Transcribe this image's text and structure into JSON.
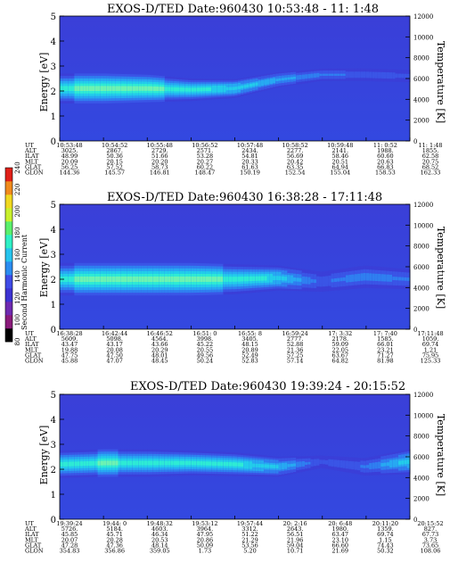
{
  "colorbar": {
    "label": "Second Harmonic Current",
    "ticks": [
      "80",
      "100",
      "120",
      "140",
      "160",
      "180",
      "200",
      "220",
      "240"
    ],
    "colors": [
      "#000000",
      "#8a1a7a",
      "#6e2ab0",
      "#3c32d2",
      "#3f4be6",
      "#2b8cf0",
      "#26c4ee",
      "#2ff0c6",
      "#5bf06c",
      "#c9f02c",
      "#f0d820",
      "#f08a1c",
      "#e02018"
    ]
  },
  "panels": [
    {
      "title": "EXOS-D/TED   Date:960430  10:53:48 - 11: 1:48",
      "ylabel": "Energy [eV]",
      "y2label": "Temperature [K]",
      "yticks": [
        "0",
        "1",
        "2",
        "3",
        "4",
        "5"
      ],
      "y2ticks": [
        "0",
        "2000",
        "4000",
        "6000",
        "8000",
        "10000",
        "12000"
      ],
      "orbit_labels": [
        "UT",
        "ALT",
        "ILAT",
        "MLT",
        "GLAT",
        "GLON"
      ],
      "orbit_columns": [
        [
          "10:53:48",
          "3025.",
          "48.99",
          "20.09",
          "56.25",
          "144.36"
        ],
        [
          "10:54:52",
          "2867.",
          "50.36",
          "20.15",
          "57.52",
          "145.57"
        ],
        [
          "10:55:48",
          "2729.",
          "51.66",
          "20.20",
          "58.73",
          "146.81"
        ],
        [
          "10:56:52",
          "2571.",
          "53.28",
          "20.27",
          "60.22",
          "148.47"
        ],
        [
          "10:57:48",
          "2434.",
          "54.81",
          "20.33",
          "61.63",
          "150.19"
        ],
        [
          "10:58:52",
          "2277.",
          "56.69",
          "20.42",
          "63.35",
          "152.54"
        ],
        [
          "10:59:48",
          "2141.",
          "58.46",
          "20.51",
          "64.94",
          "155.04"
        ],
        [
          "11: 0:52",
          "1988.",
          "60.60",
          "20.63",
          "66.83",
          "158.53"
        ],
        [
          "11: 1:48",
          "1855.",
          "62.58",
          "20.75",
          "68.52",
          "162.33"
        ]
      ]
    },
    {
      "title": "EXOS-D/TED   Date:960430  16:38:28 - 17:11:48",
      "ylabel": "Energy [eV]",
      "y2label": "Temperature [K]",
      "yticks": [
        "0",
        "1",
        "2",
        "3",
        "4",
        "5"
      ],
      "y2ticks": [
        "0",
        "2000",
        "4000",
        "6000",
        "8000",
        "10000",
        "12000"
      ],
      "orbit_labels": [
        "UT",
        "ALT",
        "ILAT",
        "MLT",
        "GLAT",
        "GLON"
      ],
      "orbit_columns": [
        [
          "16:38:28",
          "5609.",
          "43.47",
          "19.88",
          "47.75",
          "45.88"
        ],
        [
          "16:42:44",
          "5098.",
          "43.17",
          "20.08",
          "47.50",
          "47.07"
        ],
        [
          "16:46:52",
          "4564.",
          "43.66",
          "20.29",
          "48.01",
          "48.45"
        ],
        [
          "16:51: 0",
          "3998.",
          "45.22",
          "20.55",
          "49.56",
          "50.24"
        ],
        [
          "16:55: 8",
          "3405.",
          "48.15",
          "20.89",
          "52.49",
          "52.83"
        ],
        [
          "16:59:24",
          "2777.",
          "52.88",
          "21.36",
          "57.25",
          "57.14"
        ],
        [
          "17: 3:32",
          "2178.",
          "59.09",
          "22.05",
          "63.67",
          "64.82"
        ],
        [
          "17: 7:40",
          "1585.",
          "66.01",
          "23.21",
          "71.27",
          "81.98"
        ],
        [
          "17:11:48",
          "1059.",
          "69.74",
          "1.21",
          "75.95",
          "125.33"
        ]
      ]
    },
    {
      "title": "EXOS-D/TED   Date:960430  19:39:24 - 20:15:52",
      "ylabel": "Energy [eV]",
      "y2label": "Temperature [K]",
      "yticks": [
        "0",
        "1",
        "2",
        "3",
        "4",
        "5"
      ],
      "y2ticks": [
        "0",
        "2000",
        "4000",
        "6000",
        "8000",
        "10000",
        "12000"
      ],
      "orbit_labels": [
        "UT",
        "ALT",
        "ILAT",
        "MLT",
        "GLAT",
        "GLON"
      ],
      "orbit_columns": [
        [
          "19:39:24",
          "5726.",
          "45.85",
          "20.07",
          "47.28",
          "354.83"
        ],
        [
          "19:44: 0",
          "5184.",
          "45.71",
          "20.28",
          "47.36",
          "356.86"
        ],
        [
          "19:48:32",
          "4603.",
          "46.34",
          "20.53",
          "48.14",
          "359.05"
        ],
        [
          "19:53:12",
          "3964.",
          "47.95",
          "20.86",
          "50.09",
          "1.73"
        ],
        [
          "19:57:44",
          "3312.",
          "51.22",
          "21.29",
          "53.56",
          "5.20"
        ],
        [
          "20: 2:16",
          "2643.",
          "56.51",
          "21.96",
          "59.04",
          "10.71"
        ],
        [
          "20: 6:48",
          "1980.",
          "63.47",
          "23.10",
          "66.60",
          "21.69"
        ],
        [
          "20:11:20",
          "1359.",
          "69.74",
          "1.15",
          "74.43",
          "50.32"
        ],
        [
          "20:15:52",
          "827.",
          "67.73",
          "3.73",
          "73.65",
          "108.06"
        ]
      ]
    }
  ],
  "chart_data": [
    {
      "type": "heatmap",
      "title": "EXOS-D/TED   Date:960430  10:53:48 - 11: 1:48",
      "ylabel": "Energy [eV]",
      "y2label": "Temperature [K]",
      "ylim": [
        0,
        5
      ],
      "y2lim": [
        0,
        12000
      ],
      "x": [
        "10:53:48",
        "10:54:52",
        "10:55:48",
        "10:56:52",
        "10:57:48",
        "10:58:52",
        "10:59:48",
        "11: 0:52",
        "11: 1:48"
      ],
      "band": {
        "center_eV": [
          2.1,
          2.1,
          2.1,
          2.05,
          2.1,
          2.45,
          2.65,
          2.65,
          2.6
        ],
        "width_eV": [
          1.2,
          1.2,
          1.1,
          0.9,
          0.75,
          0.6,
          0.5,
          0.5,
          0.5
        ],
        "peak": [
          150,
          155,
          155,
          145,
          140,
          130,
          120,
          115,
          112
        ]
      },
      "colorbar": {
        "label": "Second Harmonic Current",
        "range": [
          80,
          240
        ]
      }
    },
    {
      "type": "heatmap",
      "title": "EXOS-D/TED   Date:960430  16:38:28 - 17:11:48",
      "ylabel": "Energy [eV]",
      "y2label": "Temperature [K]",
      "ylim": [
        0,
        5
      ],
      "y2lim": [
        0,
        12000
      ],
      "x": [
        "16:38:28",
        "16:42:44",
        "16:46:52",
        "16:51: 0",
        "16:55: 8",
        "16:59:24",
        "17: 3:32",
        "17: 7:40",
        "17:11:48"
      ],
      "band": {
        "center_eV": [
          2.0,
          2.0,
          2.0,
          2.0,
          2.0,
          2.05,
          1.9,
          2.1,
          2.0
        ],
        "width_eV": [
          1.3,
          1.3,
          1.3,
          1.3,
          1.2,
          1.0,
          0.8,
          0.9,
          0.8
        ],
        "peak": [
          150,
          155,
          155,
          155,
          150,
          140,
          115,
          125,
          118
        ]
      },
      "colorbar": {
        "label": "Second Harmonic Current",
        "range": [
          80,
          240
        ]
      }
    },
    {
      "type": "heatmap",
      "title": "EXOS-D/TED   Date:960430  19:39:24 - 20:15:52",
      "ylabel": "Energy [eV]",
      "y2label": "Temperature [K]",
      "ylim": [
        0,
        5
      ],
      "y2lim": [
        0,
        12000
      ],
      "x": [
        "19:39:24",
        "19:44: 0",
        "19:48:32",
        "19:53:12",
        "19:57:44",
        "20: 2:16",
        "20: 6:48",
        "20:11:20",
        "20:15:52"
      ],
      "band": {
        "center_eV": [
          2.2,
          2.25,
          2.25,
          2.25,
          2.2,
          2.1,
          2.3,
          2.1,
          2.3
        ],
        "width_eV": [
          1.1,
          1.1,
          1.1,
          1.0,
          0.95,
          0.8,
          0.5,
          0.7,
          1.0
        ],
        "peak": [
          148,
          152,
          150,
          148,
          145,
          135,
          112,
          118,
          140
        ]
      },
      "colorbar": {
        "label": "Second Harmonic Current",
        "range": [
          80,
          240
        ]
      }
    }
  ]
}
